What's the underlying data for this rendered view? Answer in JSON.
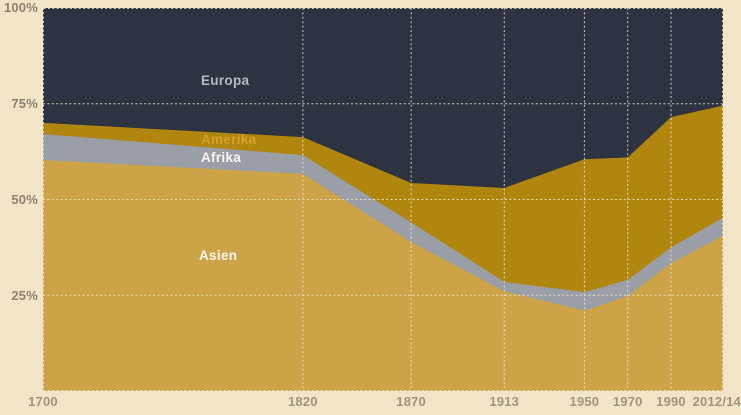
{
  "chart_data": {
    "type": "area",
    "stacked": true,
    "title": "",
    "xlabel": "",
    "ylabel": "",
    "ylim": [
      0,
      100
    ],
    "grid": true,
    "legend_position": "inline-labels",
    "x_labels": [
      "1700",
      "1820",
      "1870",
      "1913",
      "1950",
      "1970",
      "1990",
      "2012/14"
    ],
    "x_years": [
      1700,
      1820,
      1870,
      1913,
      1950,
      1970,
      1990,
      2014
    ],
    "y_ticks": [
      "100%",
      "75%",
      "50%",
      "25%"
    ],
    "y_tick_values": [
      100,
      75,
      50,
      25
    ],
    "series": [
      {
        "name": "Asien",
        "color": "#cca447",
        "values": [
          60.3,
          56.7,
          38.9,
          26.0,
          21.0,
          24.8,
          33.4,
          40.5
        ]
      },
      {
        "name": "Afrika",
        "color": "#9a9ea7",
        "values": [
          6.8,
          4.9,
          5.1,
          2.5,
          4.8,
          4.2,
          4.1,
          4.7
        ]
      },
      {
        "name": "Amerika",
        "color": "#b0860f",
        "values": [
          2.9,
          4.7,
          10.3,
          24.5,
          34.7,
          32.0,
          34.0,
          29.3
        ]
      },
      {
        "name": "Europa",
        "color": "#2d3340",
        "values": [
          30.0,
          33.7,
          45.7,
          47.0,
          39.5,
          39.0,
          28.5,
          25.5
        ]
      }
    ]
  },
  "colors": {
    "background": "#f2e4c6",
    "gridline": "#f2e9d2",
    "y_axis_text": "#8c8170",
    "x_axis_text": "#a1947f",
    "label_europa": "#b7bbc2",
    "label_amerika": "#d3a029",
    "label_white": "#faf7ef"
  }
}
